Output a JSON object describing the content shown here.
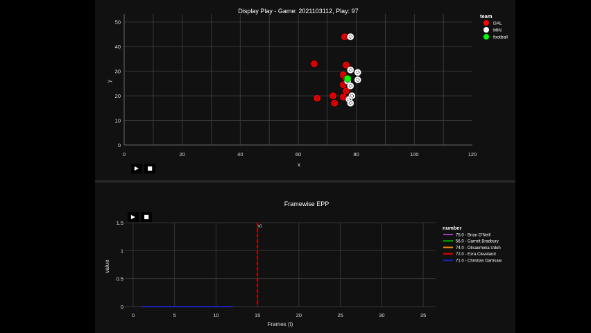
{
  "chart_data": [
    {
      "type": "scatter",
      "title": "Display Play - Game: 2021103112, Play: 97",
      "xlabel": "x",
      "ylabel": "y",
      "xlim": [
        0,
        120
      ],
      "ylim": [
        0,
        53.3
      ],
      "xticks": [
        0,
        20,
        40,
        60,
        80,
        100,
        120
      ],
      "yticks": [
        0,
        10,
        20,
        30,
        40,
        50
      ],
      "legend_title": "team",
      "legend_position": "top-right",
      "grid": true,
      "series": [
        {
          "name": "DAL",
          "color": "#ff0000",
          "points": [
            [
              76,
              44
            ],
            [
              65.5,
              33
            ],
            [
              76.5,
              32.5
            ],
            [
              75.5,
              28.5
            ],
            [
              76.5,
              27
            ],
            [
              75.5,
              24.5
            ],
            [
              76.5,
              22
            ],
            [
              72,
              20
            ],
            [
              75.5,
              19.5
            ],
            [
              66.5,
              19
            ],
            [
              72.5,
              17
            ]
          ]
        },
        {
          "name": "MIN",
          "color": "#ffffff",
          "points": [
            [
              78,
              44
            ],
            [
              78,
              30.5
            ],
            [
              80.5,
              29.5
            ],
            [
              80.5,
              26.5
            ],
            [
              77,
              26
            ],
            [
              78,
              24
            ],
            [
              78.5,
              20
            ],
            [
              77.5,
              18.5
            ],
            [
              78,
              17
            ]
          ]
        },
        {
          "name": "football",
          "color": "#00ff00",
          "points": [
            [
              77,
              27
            ]
          ]
        }
      ]
    },
    {
      "type": "line",
      "title": "Framewise EPP",
      "xlabel": "Frames (t)",
      "ylabel": "value",
      "xlim": [
        -1,
        36.5
      ],
      "ylim": [
        0,
        1.5
      ],
      "xticks": [
        0,
        5,
        10,
        15,
        20,
        25,
        30,
        35
      ],
      "yticks": [
        0,
        0.5,
        1,
        1.5
      ],
      "ytick_labels": [
        "0",
        "0.5",
        "1",
        "1.5"
      ],
      "legend_title": "number",
      "legend_position": "top-right",
      "grid": true,
      "vline": {
        "x": 15,
        "label": "t0",
        "color": "#c80000"
      },
      "series": [
        {
          "name": "75.0 - Brian O'Neill",
          "color": "#9b3dbf",
          "x": [
            1,
            12
          ],
          "y": [
            0,
            0
          ]
        },
        {
          "name": "56.0 - Garrett Bradbury",
          "color": "#00b400",
          "x": [
            1,
            12
          ],
          "y": [
            0,
            0
          ]
        },
        {
          "name": "74.0 - Olisaemeka Udoh",
          "color": "#ff8c00",
          "x": [
            1,
            12
          ],
          "y": [
            0,
            0
          ]
        },
        {
          "name": "72.0 - Ezra Cleveland",
          "color": "#e00000",
          "x": [
            1,
            12
          ],
          "y": [
            0,
            0
          ]
        },
        {
          "name": "71.0 - Christian Darrisaw",
          "color": "#2020b0",
          "x": [
            1,
            12
          ],
          "y": [
            0,
            0
          ]
        }
      ]
    }
  ],
  "controls": {
    "play": "▶",
    "stop": "■"
  }
}
